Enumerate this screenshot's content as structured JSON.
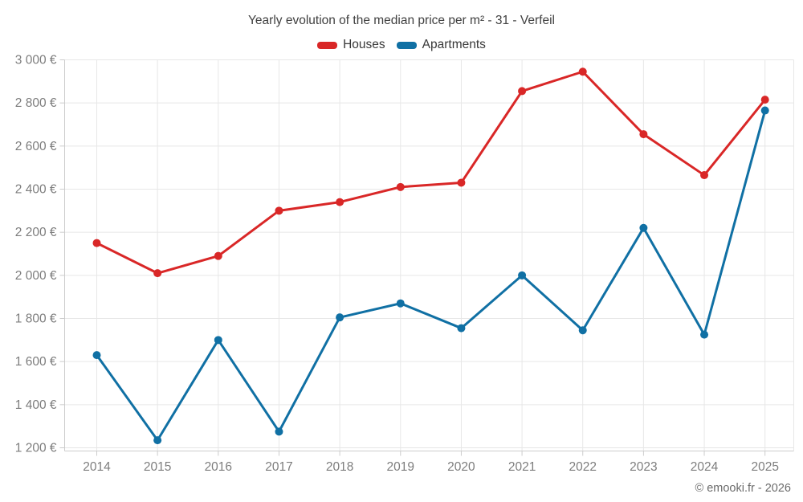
{
  "title": "Yearly evolution of the median price per m² - 31 - Verfeil",
  "footer": "© emooki.fr - 2026",
  "legend": {
    "items": [
      {
        "label": "Houses",
        "color": "#d92727"
      },
      {
        "label": "Apartments",
        "color": "#1070a4"
      }
    ]
  },
  "colors": {
    "houses": "#d92727",
    "apartments": "#1070a4",
    "grid": "#e7e7e7",
    "axis_border": "#cccccc",
    "axis_text": "#7d7d7d",
    "title_text": "#404040",
    "footer_text": "#6b6b6b"
  },
  "chart_data": {
    "type": "line",
    "title": "Yearly evolution of the median price per m² - 31 - Verfeil",
    "xlabel": "",
    "ylabel": "",
    "categories": [
      "2014",
      "2015",
      "2016",
      "2017",
      "2018",
      "2019",
      "2020",
      "2021",
      "2022",
      "2023",
      "2024",
      "2025"
    ],
    "series": [
      {
        "name": "Houses",
        "color": "#d92727",
        "values": [
          2150,
          2010,
          2090,
          2300,
          2340,
          2410,
          2430,
          2855,
          2945,
          2655,
          2465,
          2815
        ]
      },
      {
        "name": "Apartments",
        "color": "#1070a4",
        "values": [
          1630,
          1235,
          1700,
          1275,
          1805,
          1870,
          1755,
          2000,
          1745,
          2220,
          1725,
          2765
        ]
      }
    ],
    "ylim": [
      1200,
      3000
    ],
    "y_ticks": [
      {
        "value": 3000,
        "label": "3 000 €"
      },
      {
        "value": 2800,
        "label": "2 800 €"
      },
      {
        "value": 2600,
        "label": "2 600 €"
      },
      {
        "value": 2400,
        "label": "2 400 €"
      },
      {
        "value": 2200,
        "label": "2 200 €"
      },
      {
        "value": 2000,
        "label": "2 000 €"
      },
      {
        "value": 1800,
        "label": "1 800 €"
      },
      {
        "value": 1600,
        "label": "1 600 €"
      },
      {
        "value": 1400,
        "label": "1 400 €"
      }
    ],
    "y_tick_bottom": {
      "value": 1200,
      "label": "1 200 €"
    },
    "grid": true,
    "legend_position": "top",
    "point_radius": 5,
    "line_width": 3
  }
}
